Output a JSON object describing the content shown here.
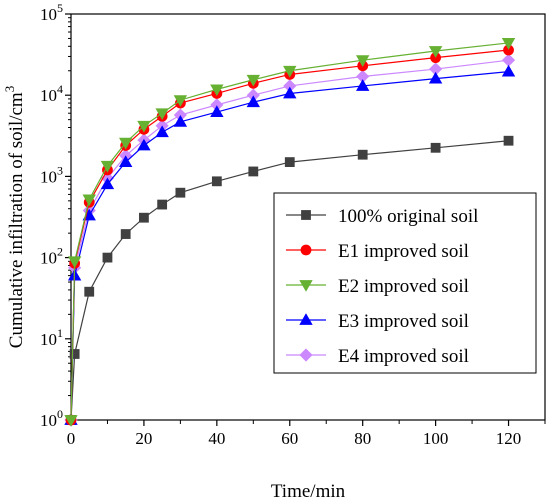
{
  "chart_data": {
    "type": "line",
    "xlabel": "Time/min",
    "ylabel": "Cumulative infiltration of soil/cm",
    "ylabel_sup": "3",
    "xlim": [
      0,
      130
    ],
    "ylim": [
      1,
      100000
    ],
    "yscale": "log",
    "xticks": [
      0,
      20,
      40,
      60,
      80,
      100,
      120
    ],
    "yticks": [
      {
        "base": "10",
        "exp": "0",
        "value": 1
      },
      {
        "base": "10",
        "exp": "1",
        "value": 10
      },
      {
        "base": "10",
        "exp": "2",
        "value": 100
      },
      {
        "base": "10",
        "exp": "3",
        "value": 1000
      },
      {
        "base": "10",
        "exp": "4",
        "value": 10000
      },
      {
        "base": "10",
        "exp": "5",
        "value": 100000
      }
    ],
    "grid": false,
    "legend_position": "bottom-right",
    "x": [
      0,
      1,
      5,
      10,
      15,
      20,
      25,
      30,
      40,
      50,
      60,
      80,
      100,
      120
    ],
    "series": [
      {
        "name": "100% original soil",
        "color": "#404040",
        "marker": "square",
        "values": [
          1,
          6.5,
          38,
          100,
          195,
          310,
          450,
          630,
          870,
          1150,
          1500,
          1850,
          2250,
          2750
        ]
      },
      {
        "name": "E1 improved soil",
        "color": "#ff0000",
        "marker": "circle",
        "values": [
          1,
          85,
          480,
          1200,
          2400,
          3800,
          5500,
          8000,
          10500,
          14000,
          18000,
          23000,
          29000,
          36000
        ]
      },
      {
        "name": "E2 improved soil",
        "color": "#66b032",
        "marker": "triangle-down",
        "values": [
          1,
          90,
          520,
          1350,
          2600,
          4200,
          6000,
          8700,
          11800,
          15500,
          20000,
          27000,
          35000,
          44000
        ]
      },
      {
        "name": "E3 improved soil",
        "color": "#0000ff",
        "marker": "triangle-up",
        "values": [
          1,
          60,
          330,
          800,
          1500,
          2400,
          3500,
          4700,
          6200,
          8200,
          10500,
          13000,
          16000,
          19500
        ]
      },
      {
        "name": "E4 improved soil",
        "color": "#cc88ff",
        "marker": "diamond",
        "values": [
          1,
          75,
          380,
          950,
          1800,
          2800,
          4200,
          5700,
          7600,
          10000,
          13000,
          17000,
          21000,
          27000
        ]
      }
    ]
  }
}
